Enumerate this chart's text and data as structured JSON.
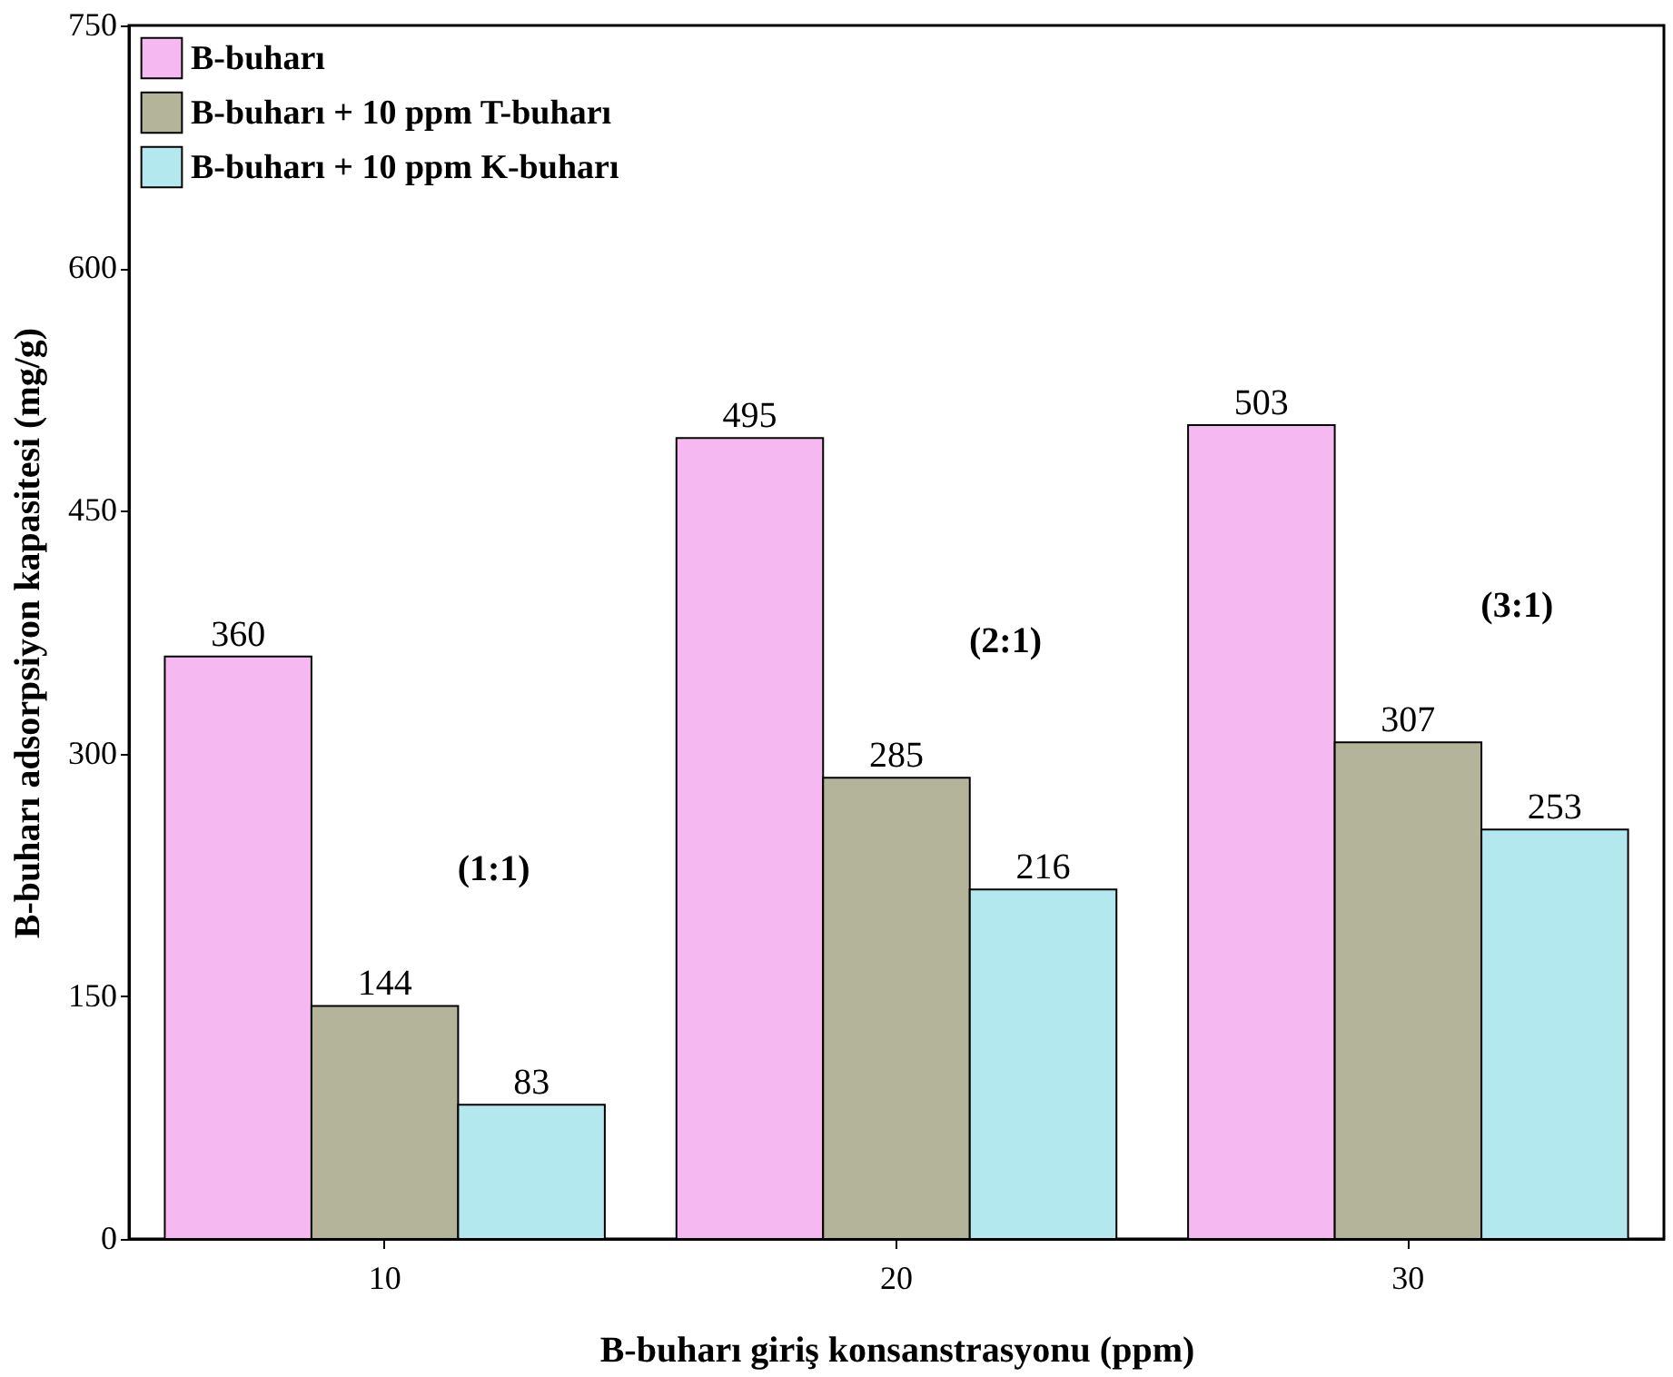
{
  "chart_data": {
    "type": "bar",
    "xlabel": "B-buharı giriş konsanstrasyonu (ppm)",
    "ylabel": "B-buharı adsorpsiyon kapasitesi (mg/g)",
    "categories": [
      "10",
      "20",
      "30"
    ],
    "series": [
      {
        "name": "B-buharı",
        "color": "#f5b8f0",
        "values": [
          360,
          495,
          503
        ]
      },
      {
        "name": "B-buharı + 10 ppm T-buharı",
        "color": "#b4b49a",
        "values": [
          144,
          285,
          307
        ]
      },
      {
        "name": "B-buharı + 10 ppm K-buharı",
        "color": "#b2e8ee",
        "values": [
          83,
          216,
          253
        ]
      }
    ],
    "ylim": [
      0,
      750
    ],
    "yticks": [
      0,
      150,
      300,
      450,
      600,
      750
    ],
    "data_labels": true,
    "legend": "top left",
    "grid": false,
    "annotations": [
      "(1:1)",
      "(2:1)",
      "(3:1)"
    ]
  }
}
